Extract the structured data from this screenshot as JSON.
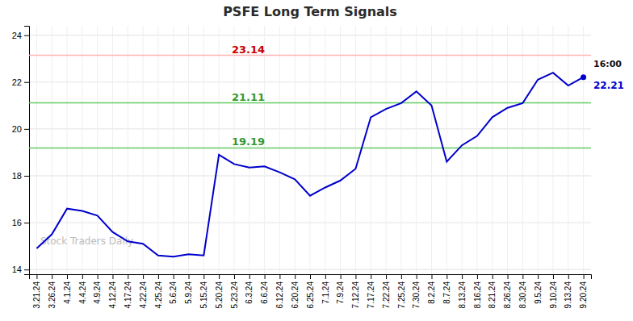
{
  "chart_data": {
    "type": "line",
    "title": "PSFE Long Term Signals",
    "categories": [
      "3.21.24",
      "3.26.24",
      "4.1.24",
      "4.4.24",
      "4.9.24",
      "4.12.24",
      "4.17.24",
      "4.22.24",
      "4.25.24",
      "5.6.24",
      "5.9.24",
      "5.15.24",
      "5.20.24",
      "5.23.24",
      "6.3.24",
      "6.6.24",
      "6.12.24",
      "6.20.24",
      "6.25.24",
      "7.1.24",
      "7.9.24",
      "7.12.24",
      "7.17.24",
      "7.22.24",
      "7.25.24",
      "7.30.24",
      "8.2.24",
      "8.7.24",
      "8.13.24",
      "8.16.24",
      "8.21.24",
      "8.26.24",
      "8.30.24",
      "9.5.24",
      "9.10.24",
      "9.13.24",
      "9.20.24"
    ],
    "values": [
      14.9,
      15.5,
      16.6,
      16.5,
      16.3,
      15.6,
      15.2,
      15.1,
      14.6,
      14.55,
      14.65,
      14.6,
      18.9,
      18.5,
      18.35,
      18.4,
      18.15,
      17.85,
      17.15,
      17.5,
      17.8,
      18.3,
      20.5,
      20.85,
      21.1,
      21.6,
      21.0,
      18.6,
      19.3,
      19.7,
      20.5,
      20.9,
      21.1,
      22.1,
      22.4,
      21.85,
      22.21
    ],
    "color": "#0000cc",
    "ylim": [
      13.8,
      24.4
    ],
    "yticks": [
      14,
      16,
      18,
      20,
      22,
      24
    ],
    "grid": true,
    "reference_lines": [
      {
        "value": 23.14,
        "color": "#ffb3b3",
        "label_color": "#cc0000"
      },
      {
        "value": 21.11,
        "color": "#66cc66",
        "label_color": "#339933"
      },
      {
        "value": 19.19,
        "color": "#66cc66",
        "label_color": "#339933"
      }
    ],
    "last_point": {
      "label": "16:00",
      "color": "#0000cc"
    },
    "watermark": "Stock Traders Daily"
  }
}
